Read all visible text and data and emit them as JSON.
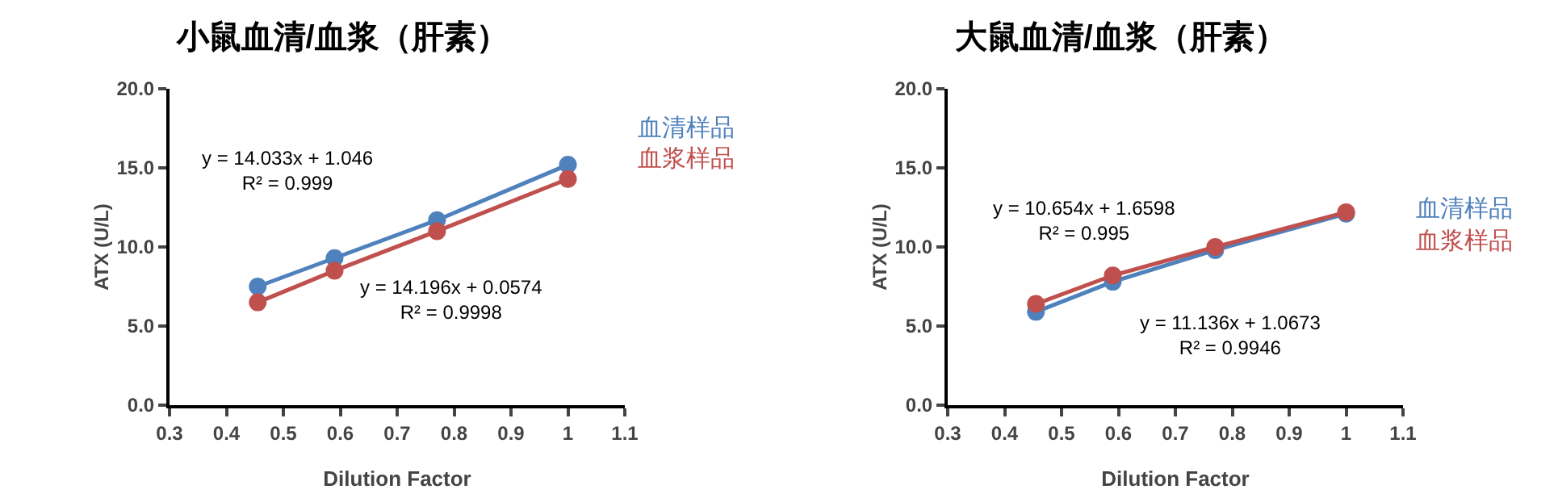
{
  "chart_data": [
    {
      "type": "line",
      "title": "小鼠血清/血浆（肝素）",
      "xlabel": "Dilution Factor",
      "ylabel": "ATX (U/L)",
      "x": [
        0.455,
        0.59,
        0.77,
        1
      ],
      "series": [
        {
          "name": "血清样品",
          "color": "#4f81bd",
          "values": [
            7.5,
            9.3,
            11.7,
            15.2
          ]
        },
        {
          "name": "血浆样品",
          "color": "#c0504d",
          "values": [
            6.5,
            8.5,
            11.0,
            14.3
          ]
        }
      ],
      "xlim": [
        0.3,
        1.1
      ],
      "xticks": [
        0.3,
        0.4,
        0.5,
        0.6,
        0.7,
        0.8,
        0.9,
        1,
        1.1
      ],
      "ylim": [
        0,
        20
      ],
      "yticks": [
        {
          "value": 0,
          "label": "0.0"
        },
        {
          "value": 5,
          "label": "5.0"
        },
        {
          "value": 10,
          "label": "10.0"
        },
        {
          "value": 15,
          "label": "15.0"
        },
        {
          "value": 20,
          "label": "20.0"
        }
      ],
      "annotations": [
        "y = 14.033x + 1.046\nR² = 0.999",
        "y = 14.196x + 0.0574\nR² = 0.9998"
      ],
      "grid": false,
      "legend": "top right",
      "marker": "circle",
      "line_style": "solid"
    },
    {
      "type": "line",
      "title": "大鼠血清/血浆（肝素）",
      "xlabel": "Dilution Factor",
      "ylabel": "ATX (U/L)",
      "x": [
        0.455,
        0.59,
        0.77,
        1
      ],
      "series": [
        {
          "name": "血清样品",
          "color": "#4f81bd",
          "values": [
            5.9,
            7.8,
            9.8,
            12.1
          ]
        },
        {
          "name": "血浆样品",
          "color": "#c0504d",
          "values": [
            6.4,
            8.2,
            10.0,
            12.2
          ]
        }
      ],
      "xlim": [
        0.3,
        1.1
      ],
      "xticks": [
        0.3,
        0.4,
        0.5,
        0.6,
        0.7,
        0.8,
        0.9,
        1,
        1.1
      ],
      "ylim": [
        0,
        20
      ],
      "yticks": [
        {
          "value": 0,
          "label": "0.0"
        },
        {
          "value": 5,
          "label": "5.0"
        },
        {
          "value": 10,
          "label": "10.0"
        },
        {
          "value": 15,
          "label": "15.0"
        },
        {
          "value": 20,
          "label": "20.0"
        }
      ],
      "annotations": [
        "y = 10.654x + 1.6598\nR² = 0.995",
        "y = 11.136x + 1.0673\nR² = 0.9946"
      ],
      "grid": false,
      "legend": "right",
      "marker": "circle",
      "line_style": "solid"
    }
  ]
}
